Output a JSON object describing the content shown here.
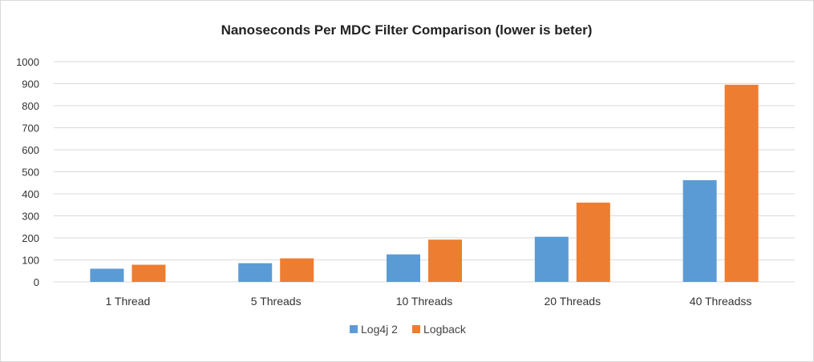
{
  "chart_data": {
    "type": "bar",
    "title": "Nanoseconds Per MDC Filter Comparison (lower is beter)",
    "xlabel": "",
    "ylabel": "",
    "categories": [
      "1 Thread",
      "5 Threads",
      "10 Threads",
      "20 Threads",
      "40 Threadss"
    ],
    "series": [
      {
        "name": "Log4j 2",
        "color": "#5b9bd5",
        "values": [
          60,
          85,
          125,
          205,
          462
        ]
      },
      {
        "name": "Logback",
        "color": "#ed7d31",
        "values": [
          78,
          107,
          192,
          360,
          895
        ]
      }
    ],
    "ylim": [
      0,
      1000
    ],
    "yticks": [
      0,
      100,
      200,
      300,
      400,
      500,
      600,
      700,
      800,
      900,
      1000
    ],
    "grid": true,
    "legend": "bottom-center"
  }
}
